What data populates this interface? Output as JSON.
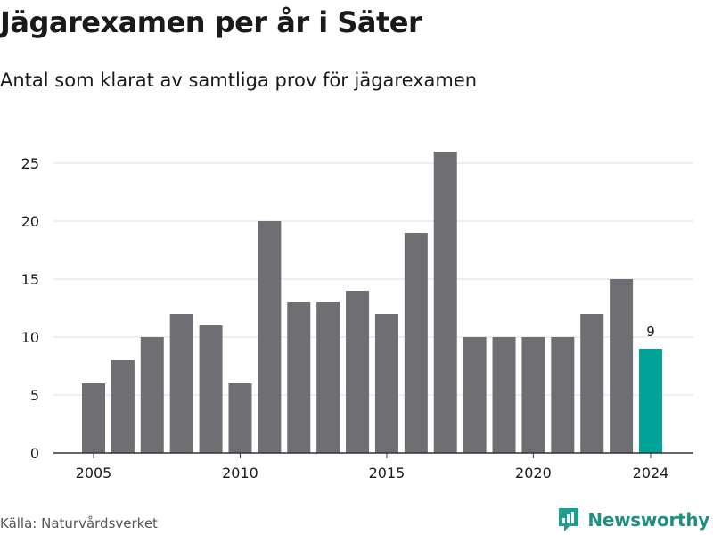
{
  "title": "Jägarexamen per år i Säter",
  "subtitle": "Antal som klarat av samtliga prov för jägarexamen",
  "source": "Källa: Naturvårdsverket",
  "brand": {
    "name": "Newsworthy",
    "icon": "newsworthy-logo-icon",
    "color": "#1f9e8f"
  },
  "colors": {
    "bar": "#6f6e73",
    "highlight": "#00a398",
    "grid": "#dcdcdc",
    "axis": "#333333"
  },
  "chart_data": {
    "type": "bar",
    "title": "Jägarexamen per år i Säter",
    "subtitle": "Antal som klarat av samtliga prov för jägarexamen",
    "xlabel": "",
    "ylabel": "",
    "x": [
      2005,
      2006,
      2007,
      2008,
      2009,
      2010,
      2011,
      2012,
      2013,
      2014,
      2015,
      2016,
      2017,
      2018,
      2019,
      2020,
      2021,
      2022,
      2023,
      2024
    ],
    "values": [
      6,
      8,
      10,
      12,
      11,
      6,
      20,
      13,
      13,
      14,
      12,
      19,
      26,
      10,
      10,
      10,
      10,
      12,
      15,
      9
    ],
    "highlight": 2024,
    "highlight_label": "9",
    "ylim": [
      0,
      26
    ],
    "yticks": [
      0,
      5,
      10,
      15,
      20,
      25
    ],
    "xticks": [
      "2005",
      "2010",
      "2015",
      "2020",
      "2024"
    ],
    "grid": true,
    "legend": "none"
  }
}
